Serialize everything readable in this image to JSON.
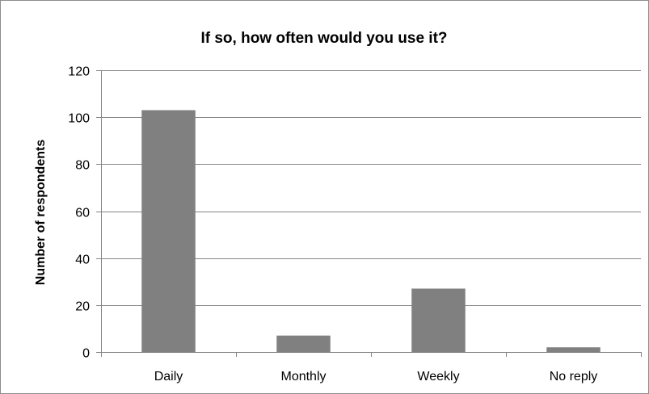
{
  "chart_data": {
    "type": "bar",
    "title": "If so, how often would you use it?",
    "xlabel": "",
    "ylabel": "Number of respondents",
    "categories": [
      "Daily",
      "Monthly",
      "Weekly",
      "No reply"
    ],
    "values": [
      103,
      7,
      27,
      2
    ],
    "ylim": [
      0,
      120
    ],
    "yticks": [
      0,
      20,
      40,
      60,
      80,
      100,
      120
    ],
    "grid": true,
    "legend": "none",
    "bar_color": "#808080",
    "gridline_color": "#868686"
  }
}
